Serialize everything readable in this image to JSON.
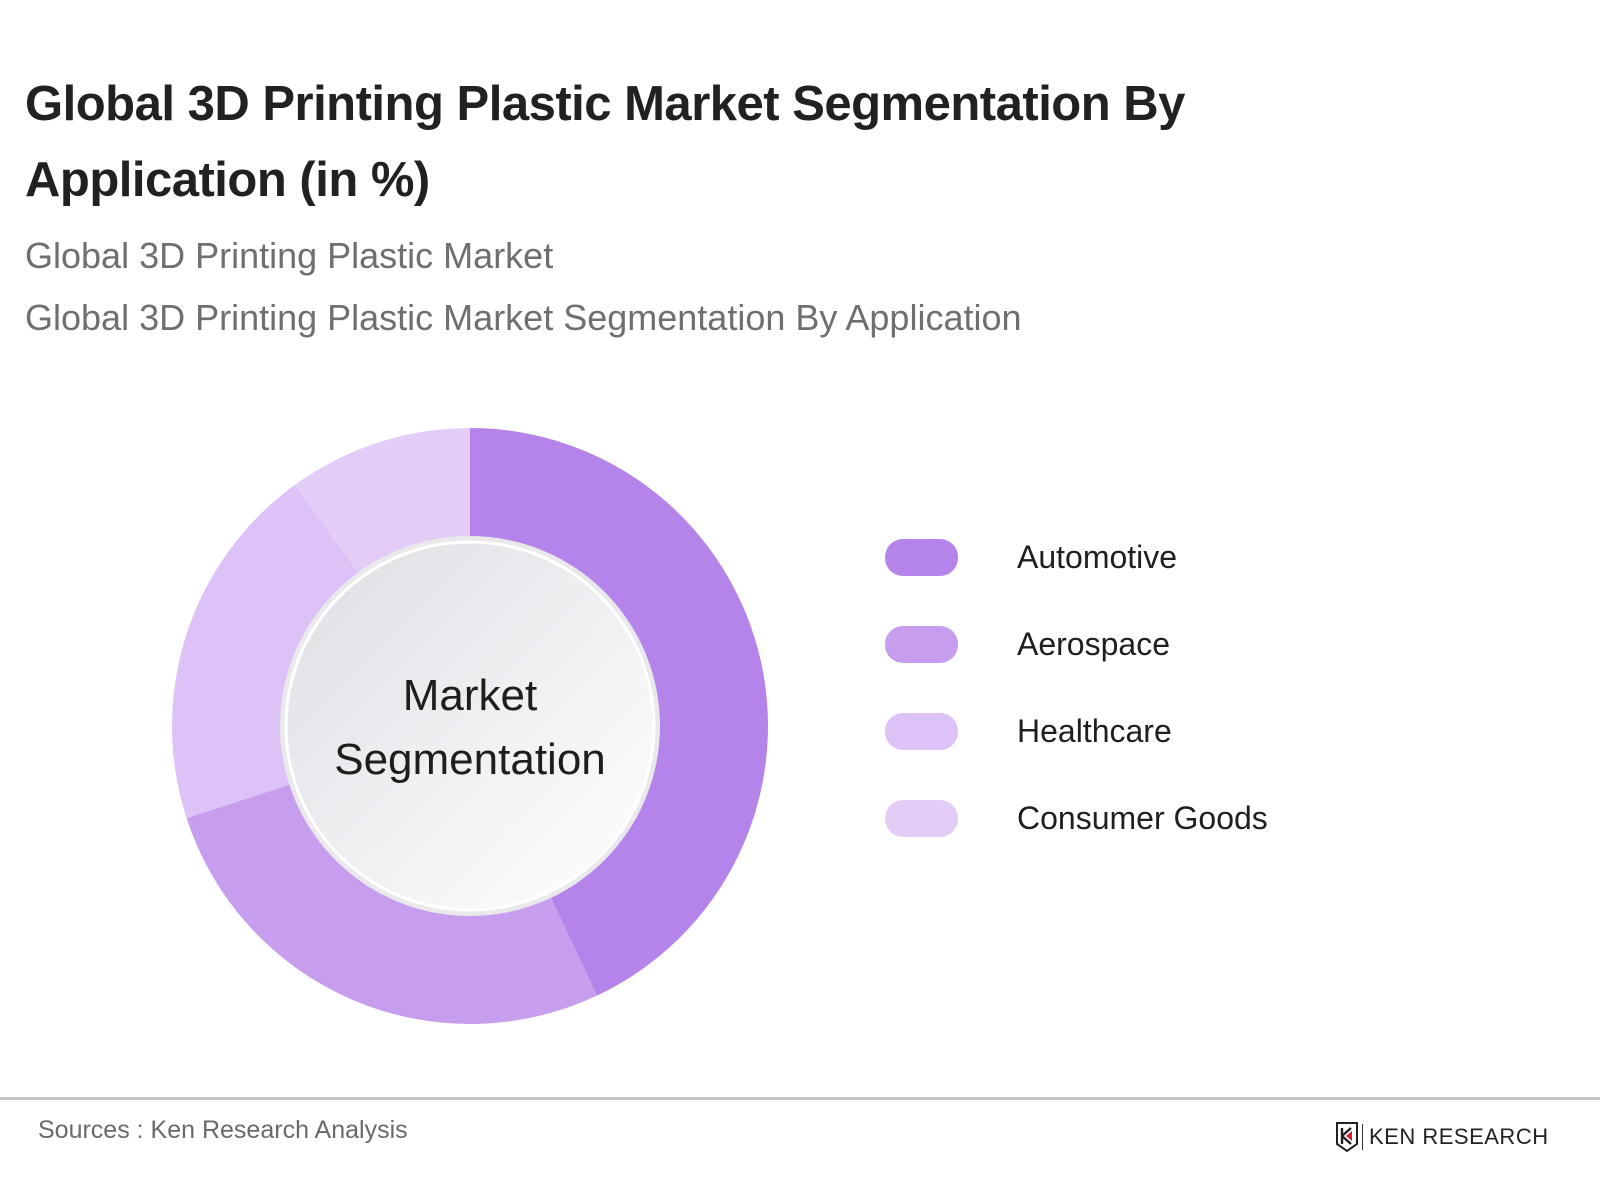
{
  "header": {
    "title": "Global 3D Printing Plastic Market Segmentation By Application (in %)",
    "subtitle_1": "Global 3D Printing Plastic Market",
    "subtitle_2": "Global 3D Printing Plastic Market Segmentation By Application"
  },
  "chart": {
    "center_label_line1": "Market",
    "center_label_line2": "Segmentation"
  },
  "legend": [
    {
      "label": "Automotive",
      "color": "#b584ea"
    },
    {
      "label": "Aerospace",
      "color": "#c79dee"
    },
    {
      "label": "Healthcare",
      "color": "#dcc2f6"
    },
    {
      "label": "Consumer Goods",
      "color": "#e3cdf7"
    }
  ],
  "footer": {
    "source": "Sources : Ken Research Analysis",
    "logo_text": "KEN RESEARCH"
  },
  "chart_data": {
    "type": "pie",
    "subtype": "donut",
    "title": "Global 3D Printing Plastic Market Segmentation By Application (in %)",
    "subtitle": "Global 3D Printing Plastic Market Segmentation By Application",
    "center_text": "Market Segmentation",
    "categories": [
      "Automotive",
      "Aerospace",
      "Healthcare",
      "Consumer Goods"
    ],
    "values": [
      43,
      27,
      20,
      10
    ],
    "colors": [
      "#b584ea",
      "#c79dee",
      "#dcc2f6",
      "#e3cdf7"
    ],
    "start_angle": "12 o'clock, clockwise",
    "data_labels": false,
    "legend_position": "right"
  }
}
